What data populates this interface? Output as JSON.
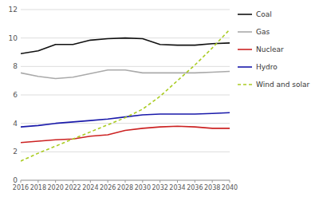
{
  "chart_data": {
    "type": "line",
    "x": [
      2016,
      2018,
      2020,
      2022,
      2024,
      2026,
      2028,
      2030,
      2032,
      2034,
      2036,
      2038,
      2040
    ],
    "xlim": [
      2016,
      2040
    ],
    "xticks": [
      2016,
      2018,
      2020,
      2022,
      2024,
      2026,
      2028,
      2030,
      2032,
      2034,
      2036,
      2038,
      2040
    ],
    "ylim": [
      0,
      12
    ],
    "yticks": [
      0,
      2,
      4,
      6,
      8,
      10,
      12
    ],
    "grid": true,
    "legend": "right",
    "series": [
      {
        "name": "Coal",
        "color": "#111111",
        "line_style": "solid",
        "values": [
          8.9,
          9.1,
          9.55,
          9.55,
          9.85,
          9.95,
          10.0,
          9.95,
          9.55,
          9.5,
          9.5,
          9.6,
          9.65
        ]
      },
      {
        "name": "Gas",
        "color": "#aaaaaa",
        "line_style": "solid",
        "values": [
          7.55,
          7.3,
          7.15,
          7.25,
          7.5,
          7.75,
          7.75,
          7.55,
          7.55,
          7.55,
          7.55,
          7.6,
          7.65
        ]
      },
      {
        "name": "Nuclear",
        "color": "#cc2222",
        "line_style": "solid",
        "values": [
          2.65,
          2.75,
          2.85,
          2.9,
          3.1,
          3.2,
          3.5,
          3.65,
          3.75,
          3.8,
          3.75,
          3.65,
          3.65
        ]
      },
      {
        "name": "Hydro",
        "color": "#1a1aaa",
        "line_style": "solid",
        "values": [
          3.75,
          3.85,
          4.0,
          4.1,
          4.2,
          4.3,
          4.45,
          4.6,
          4.65,
          4.65,
          4.65,
          4.7,
          4.75
        ]
      },
      {
        "name": "Wind and solar",
        "color": "#aacc22",
        "line_style": "dashed",
        "values": [
          1.35,
          1.9,
          2.4,
          2.9,
          3.4,
          3.9,
          4.4,
          5.0,
          5.9,
          7.0,
          8.1,
          9.3,
          10.6
        ]
      }
    ]
  }
}
